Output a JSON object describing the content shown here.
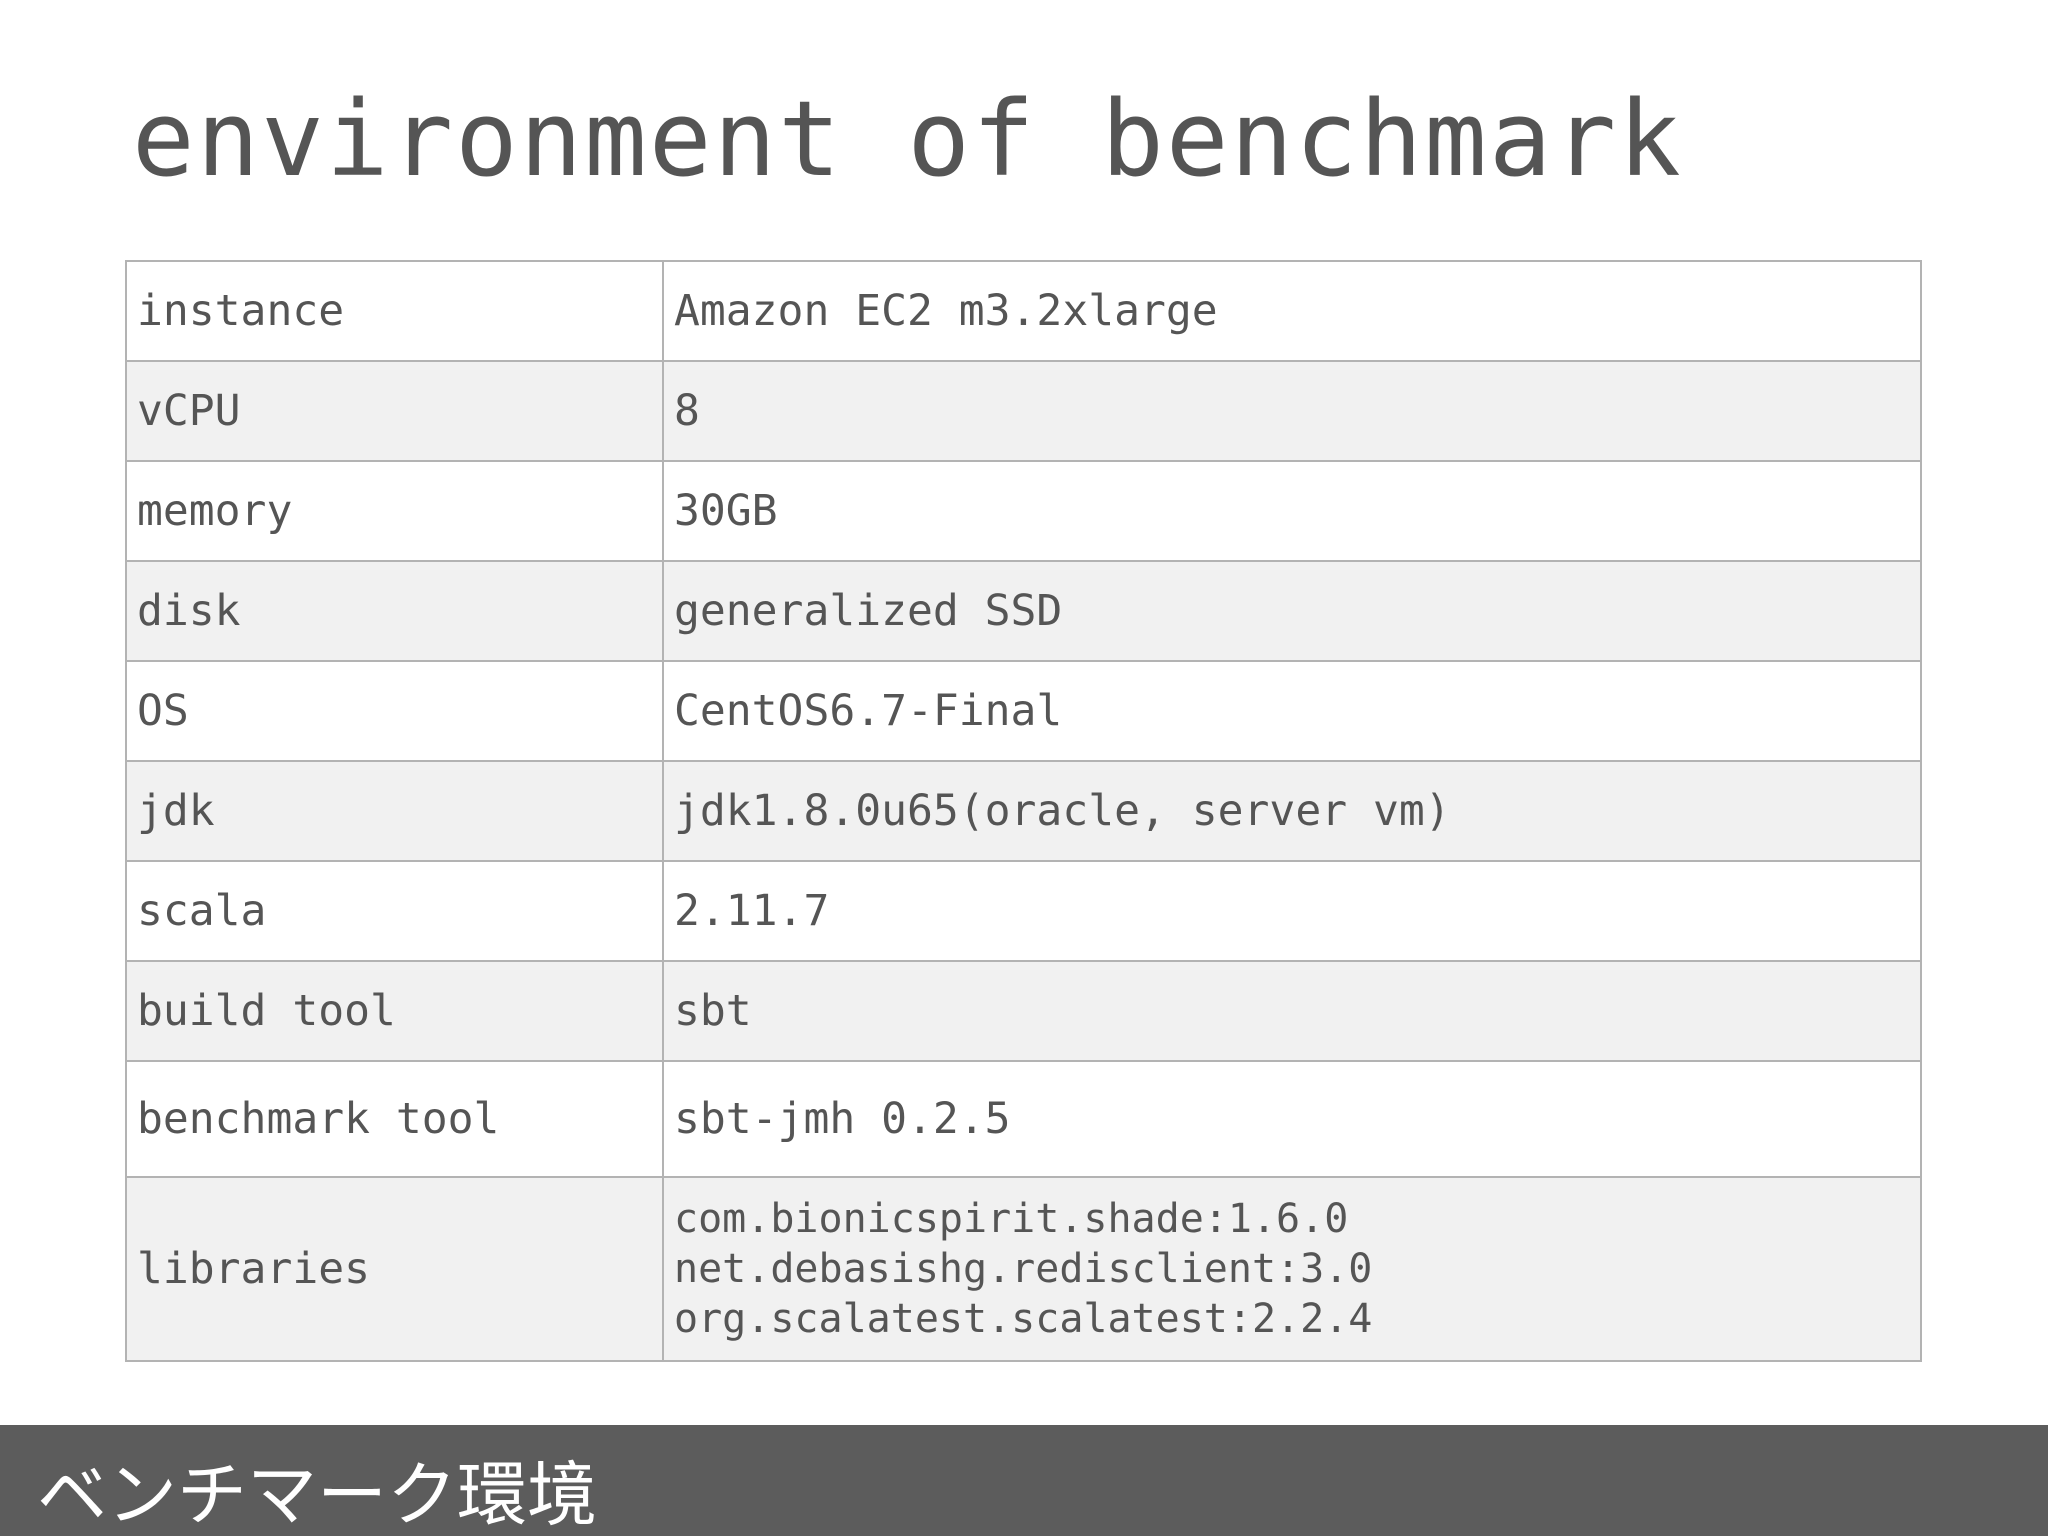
{
  "header": {
    "title": "environment of benchmark"
  },
  "table": {
    "rows": [
      [
        "instance",
        "Amazon EC2 m3.2xlarge"
      ],
      [
        "vCPU",
        "8"
      ],
      [
        "memory",
        "30GB"
      ],
      [
        "disk",
        "generalized SSD"
      ],
      [
        "OS",
        "CentOS6.7-Final"
      ],
      [
        "jdk",
        "jdk1.8.0u65(oracle, server vm)"
      ],
      [
        "scala",
        "2.11.7"
      ],
      [
        "build tool",
        "sbt"
      ],
      [
        "benchmark tool",
        "sbt-jmh 0.2.5"
      ],
      [
        "libraries",
        [
          "com.bionicspirit.shade:1.6.0",
          "net.debasishg.redisclient:3.0",
          "org.scalatest.scalatest:2.2.4"
        ]
      ]
    ]
  },
  "footer": {
    "text": "ベンチマーク環境"
  }
}
